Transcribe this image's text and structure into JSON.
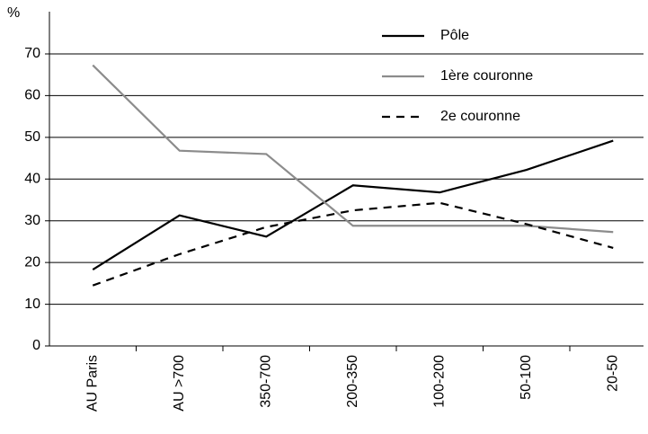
{
  "chart_data": {
    "type": "line",
    "y_label": "%",
    "categories": [
      "AU Paris",
      "AU >700",
      "350-700",
      "200-350",
      "100-200",
      "50-100",
      "20-50"
    ],
    "series": [
      {
        "name": "Pôle",
        "color": "#000000",
        "dash": "solid",
        "values": [
          18.3,
          31.3,
          26.2,
          38.5,
          36.8,
          42.2,
          49.2
        ]
      },
      {
        "name": "1ère couronne",
        "color": "#8c8c8c",
        "dash": "solid",
        "values": [
          67.3,
          46.8,
          46.0,
          28.8,
          28.8,
          28.8,
          27.3
        ]
      },
      {
        "name": "2e couronne",
        "color": "#000000",
        "dash": "dashed",
        "values": [
          14.5,
          22.0,
          28.5,
          32.5,
          34.3,
          29.2,
          23.5
        ]
      }
    ],
    "ylim": [
      0,
      70
    ],
    "yticks": [
      0,
      10,
      20,
      30,
      40,
      50,
      60,
      70
    ],
    "grid": true
  }
}
